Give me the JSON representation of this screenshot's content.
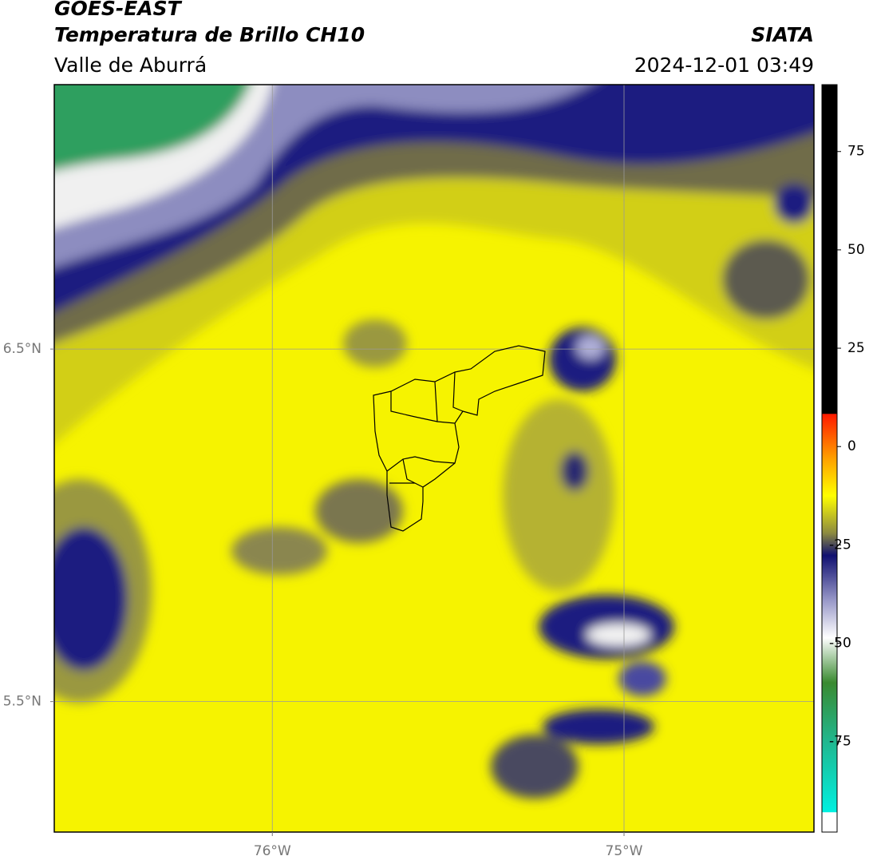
{
  "header": {
    "source": "GOES-EAST",
    "title": "Temperatura de Brillo CH10",
    "subtitle": "Valle de Aburrá",
    "agency": "SIATA",
    "datetime": "2024-12-01 03:49"
  },
  "map": {
    "xlim": [
      -76.62,
      -74.46
    ],
    "ylim": [
      5.13,
      7.25
    ],
    "xticks": [
      {
        "value": -76,
        "label": "76°W"
      },
      {
        "value": -75,
        "label": "75°W"
      }
    ],
    "yticks": [
      {
        "value": 6.5,
        "label": "6.5°N"
      },
      {
        "value": 5.5,
        "label": "5.5°N"
      }
    ],
    "grid": true
  },
  "colorbar": {
    "lim": [
      -98,
      92
    ],
    "ticks": [
      75,
      50,
      25,
      0,
      -25,
      -50,
      -75
    ]
  }
}
